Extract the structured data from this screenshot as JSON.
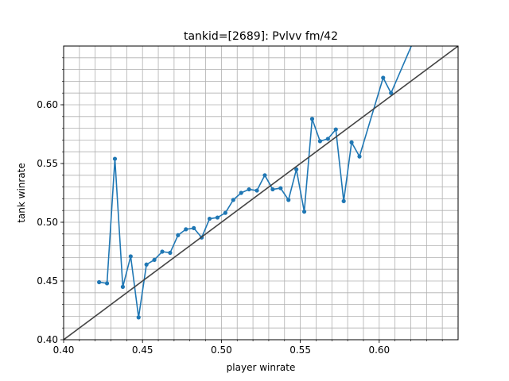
{
  "chart_data": {
    "type": "line",
    "title": "tankid=[2689]: Pvlvv fm/42",
    "xlabel": "player winrate",
    "ylabel": "tank winrate",
    "xlim": [
      0.4,
      0.65
    ],
    "ylim": [
      0.4,
      0.65
    ],
    "xticks": [
      "0.40",
      "0.45",
      "0.50",
      "0.55",
      "0.60"
    ],
    "yticks": [
      "0.40",
      "0.45",
      "0.50",
      "0.55",
      "0.60"
    ],
    "grid": true,
    "grid_step": 0.01,
    "series": [
      {
        "color": "#1f77b4",
        "marker": "dot",
        "x": [
          0.4225,
          0.4275,
          0.4325,
          0.4375,
          0.4425,
          0.4475,
          0.4525,
          0.4575,
          0.4625,
          0.4675,
          0.4725,
          0.4775,
          0.4825,
          0.4875,
          0.4925,
          0.4975,
          0.5025,
          0.5075,
          0.5125,
          0.5175,
          0.5225,
          0.5275,
          0.5325,
          0.5375,
          0.5425,
          0.5475,
          0.5525,
          0.5575,
          0.5625,
          0.5675,
          0.5725,
          0.5775,
          0.5825,
          0.5875,
          0.6025,
          0.6075,
          0.63
        ],
        "y": [
          0.449,
          0.448,
          0.554,
          0.445,
          0.471,
          0.419,
          0.464,
          0.468,
          0.475,
          0.474,
          0.489,
          0.494,
          0.495,
          0.487,
          0.503,
          0.504,
          0.508,
          0.519,
          0.525,
          0.528,
          0.527,
          0.54,
          0.528,
          0.529,
          0.519,
          0.545,
          0.509,
          0.588,
          0.569,
          0.571,
          0.579,
          0.518,
          0.568,
          0.556,
          0.623,
          0.61,
          0.68
        ]
      },
      {
        "color": "#444444",
        "marker": "none",
        "x": [
          0.4,
          0.65
        ],
        "y": [
          0.4,
          0.65
        ]
      }
    ]
  }
}
